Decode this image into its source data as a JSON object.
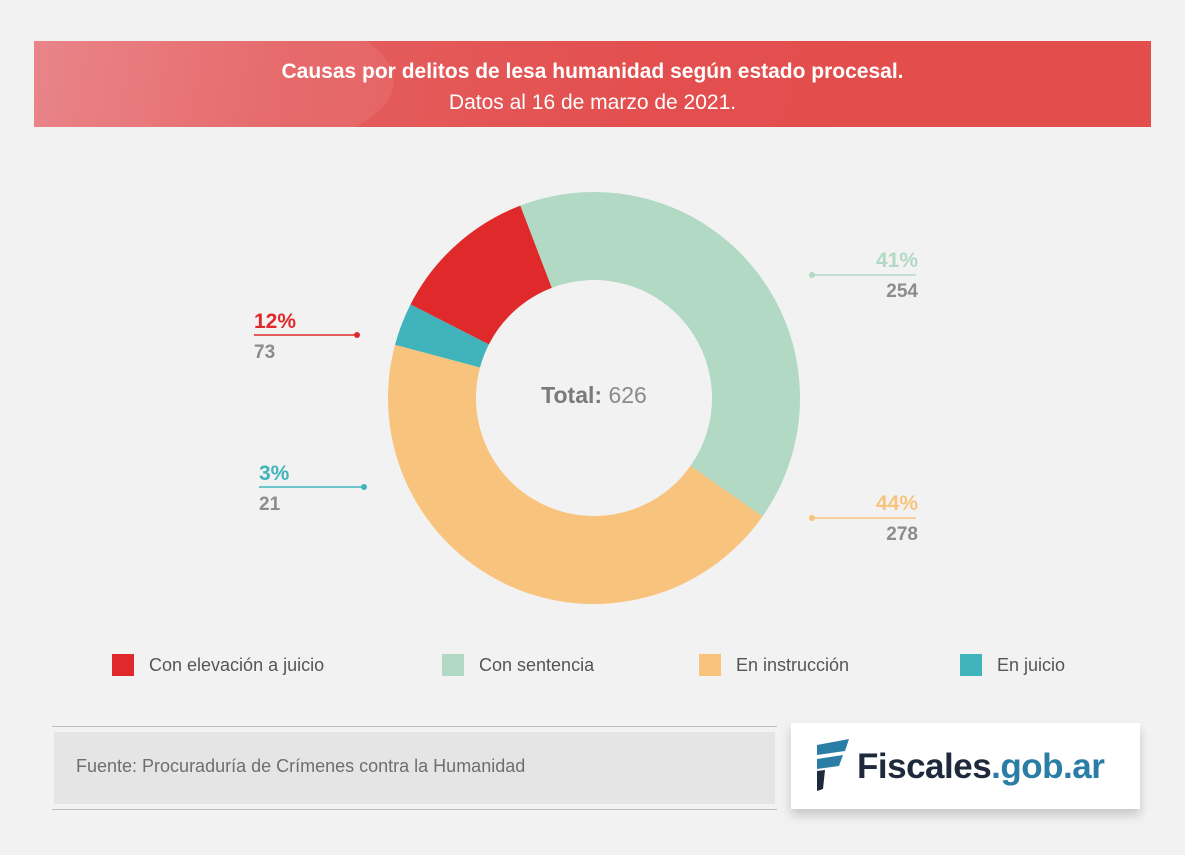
{
  "header": {
    "title": "Causas por delitos de lesa humanidad según estado procesal.",
    "subtitle": "Datos al 16 de marzo de 2021."
  },
  "center": {
    "total_label": "Total:",
    "total_value": "626"
  },
  "callouts": [
    {
      "pct": "41%",
      "count": "254"
    },
    {
      "pct": "12%",
      "count": "73"
    },
    {
      "pct": "3%",
      "count": "21"
    },
    {
      "pct": "44%",
      "count": "278"
    }
  ],
  "legend": [
    {
      "label": "Con elevación a juicio"
    },
    {
      "label": "Con sentencia"
    },
    {
      "label": "En instrucción"
    },
    {
      "label": "En juicio"
    }
  ],
  "source": {
    "text": "Fuente: Procuraduría de Crímenes contra la Humanidad"
  },
  "logo": {
    "part1": "Fiscales",
    "part2": ".gob.ar"
  },
  "colors": {
    "elevacion": "#e0292a",
    "sentencia": "#b1d9c4",
    "instruccion": "#f8c47d",
    "juicio": "#41b4bb",
    "header": "#e34d4c",
    "count_text": "#8c8c8c"
  },
  "chart_data": {
    "type": "pie",
    "title": "Causas por delitos de lesa humanidad según estado procesal.",
    "subtitle": "Datos al 16 de marzo de 2021.",
    "donut": true,
    "total": 626,
    "series": [
      {
        "name": "Con sentencia",
        "value": 254,
        "percent": 41,
        "color": "#b1d9c4"
      },
      {
        "name": "En instrucción",
        "value": 278,
        "percent": 44,
        "color": "#f8c47d"
      },
      {
        "name": "En juicio",
        "value": 21,
        "percent": 3,
        "color": "#41b4bb"
      },
      {
        "name": "Con elevación a juicio",
        "value": 73,
        "percent": 12,
        "color": "#e0292a"
      }
    ],
    "legend_position": "bottom"
  }
}
